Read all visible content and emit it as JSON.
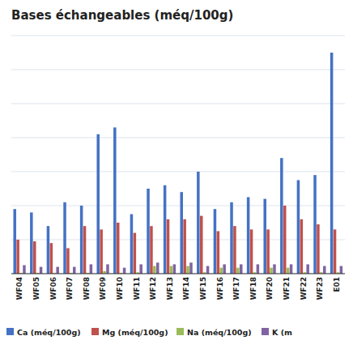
{
  "chart_data": {
    "type": "bar",
    "title": "Bases échangeables (méq/100g)",
    "categories": [
      "WF04",
      "WF05",
      "WF06",
      "WF07",
      "WF08",
      "WF09",
      "WF10",
      "WF11",
      "WF12",
      "WF13",
      "WF14",
      "WF15",
      "WF16",
      "WF17",
      "WF18",
      "WF20",
      "WF21",
      "WF22",
      "WF23",
      "E01"
    ],
    "series": [
      {
        "name": "Ca (méq/100g)",
        "color": "#4472C4",
        "values": [
          3.8,
          3.6,
          2.8,
          4.2,
          4.0,
          8.2,
          8.6,
          3.5,
          5.0,
          5.2,
          4.8,
          6.0,
          3.8,
          4.2,
          4.5,
          4.4,
          6.8,
          5.5,
          5.8,
          13.0
        ]
      },
      {
        "name": "Mg (méq/100g)",
        "color": "#C0504D",
        "values": [
          2.0,
          1.9,
          1.8,
          1.5,
          2.8,
          2.6,
          3.0,
          2.4,
          2.8,
          3.2,
          3.2,
          3.4,
          2.5,
          2.8,
          2.6,
          2.6,
          4.0,
          3.2,
          2.9,
          2.6
        ]
      },
      {
        "name": "Na (méq/100g)",
        "color": "#9BBB59",
        "values": [
          0.05,
          0.05,
          0.05,
          0.05,
          0.05,
          0.15,
          0.05,
          0.08,
          0.45,
          0.45,
          0.45,
          0.08,
          0.35,
          0.35,
          0.08,
          0.35,
          0.35,
          0.08,
          0.08,
          0.08
        ]
      },
      {
        "name": "K (m",
        "color": "#8064A2",
        "values": [
          0.5,
          0.4,
          0.4,
          0.4,
          0.55,
          0.55,
          0.35,
          0.55,
          0.65,
          0.55,
          0.65,
          0.45,
          0.55,
          0.55,
          0.55,
          0.55,
          0.55,
          0.55,
          0.45,
          0.45
        ]
      }
    ],
    "ylim": [
      0,
      14
    ],
    "yticks": [
      0,
      2,
      4,
      6,
      8,
      10,
      12,
      14
    ],
    "grid": true,
    "tick_labels": "x",
    "legend": "bottom"
  }
}
